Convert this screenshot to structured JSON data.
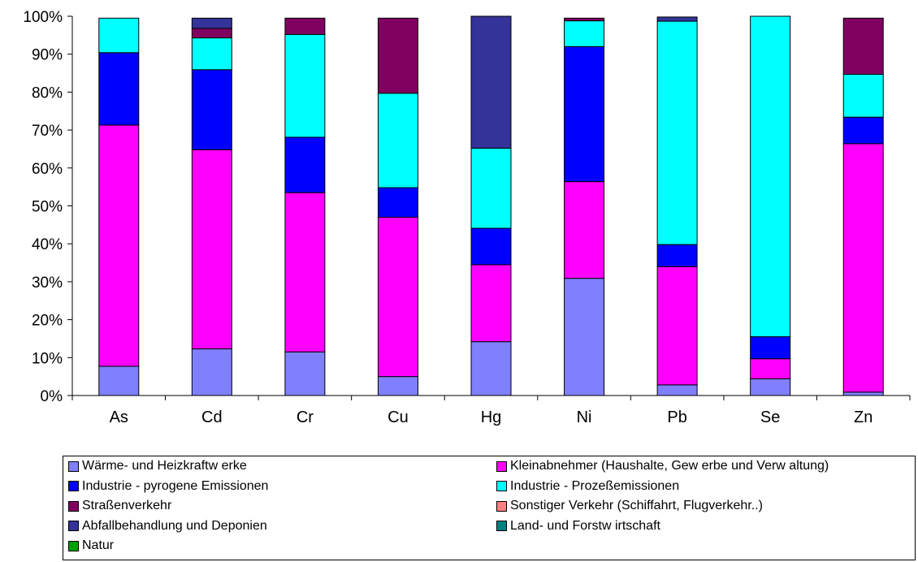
{
  "chart_data": {
    "type": "bar",
    "stacked": true,
    "percent": true,
    "title": "",
    "xlabel": "",
    "ylabel": "",
    "ylim": [
      0,
      100
    ],
    "yticks": [
      "0%",
      "10%",
      "20%",
      "30%",
      "40%",
      "50%",
      "60%",
      "70%",
      "80%",
      "90%",
      "100%"
    ],
    "categories": [
      "As",
      "Cd",
      "Cr",
      "Cu",
      "Hg",
      "Ni",
      "Pb",
      "Se",
      "Zn"
    ],
    "grid": false,
    "legend_position": "bottom",
    "series": [
      {
        "name": "Wärme- und Heizkraftw erke",
        "color": "#8080ff",
        "values": [
          7.7,
          12.3,
          11.5,
          5.0,
          14.2,
          30.9,
          2.8,
          4.4,
          0.9
        ]
      },
      {
        "name": "Kleinabnehmer (Haushalte, Gew erbe und Verw altung)",
        "color": "#ff00ff",
        "values": [
          63.6,
          52.5,
          42.0,
          42.0,
          20.3,
          25.5,
          31.2,
          5.3,
          65.5
        ]
      },
      {
        "name": "Industrie - pyrogene Emissionen",
        "color": "#0000ff",
        "values": [
          19.1,
          21.1,
          14.6,
          7.8,
          9.6,
          35.6,
          5.8,
          5.8,
          7.0
        ]
      },
      {
        "name": "Industrie - Prozeßemissionen",
        "color": "#00ffff",
        "values": [
          9.1,
          8.4,
          27.1,
          24.9,
          21.1,
          6.8,
          58.9,
          84.5,
          11.3
        ]
      },
      {
        "name": "Straßenverkehr",
        "color": "#800060",
        "values": [
          0.0,
          2.5,
          4.3,
          19.8,
          0.0,
          0.7,
          0.0,
          0.0,
          14.8
        ]
      },
      {
        "name": "Sonstiger Verkehr (Schiffahrt, Flugverkehr..)",
        "color": "#ff8080",
        "values": [
          0,
          0,
          0,
          0,
          0,
          0,
          0,
          0,
          0
        ]
      },
      {
        "name": "Abfallbehandlung und Deponien",
        "color": "#333399",
        "values": [
          0.0,
          2.7,
          0.0,
          0.0,
          34.8,
          0.0,
          1.1,
          0.0,
          0.0
        ]
      },
      {
        "name": "Land- und Forstw irtschaft",
        "color": "#008080",
        "values": [
          0,
          0,
          0,
          0,
          0,
          0,
          0,
          0,
          0
        ]
      },
      {
        "name": "Natur",
        "color": "#00a000",
        "values": [
          0,
          0,
          0,
          0,
          0,
          0,
          0,
          0,
          0
        ]
      }
    ]
  }
}
